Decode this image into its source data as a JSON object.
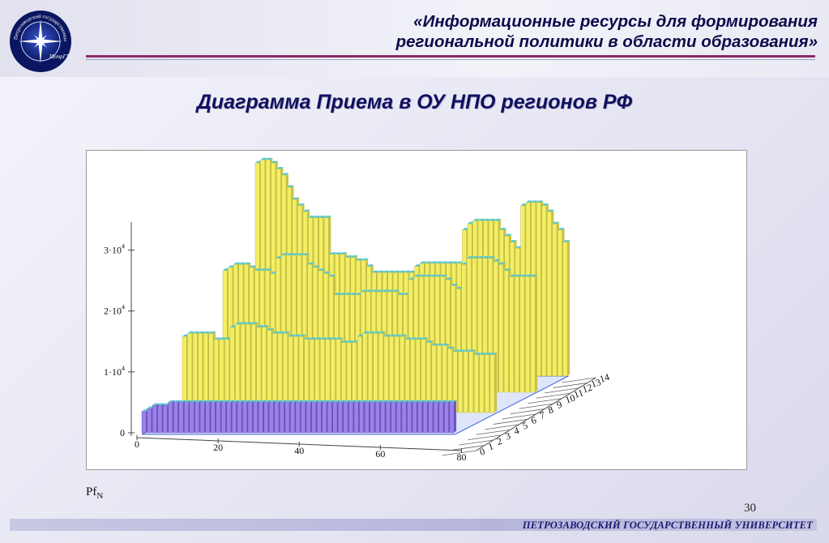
{
  "header": {
    "title_line1": "«Информационные ресурсы для формирования",
    "title_line2": "региональной политики в области образования»",
    "logo_icon": "university-star-logo-icon",
    "logo_text_arc": "Петрозаводский государственный университет",
    "logo_text_center": "ПетрГУ"
  },
  "slide": {
    "title": "Диаграмма Приема в ОУ НПО регионов РФ",
    "page_number": "30"
  },
  "footer": {
    "university_name": "ПЕТРОЗАВОДСКИЙ ГОСУДАРСТВЕННЫЙ УНИВЕРСИТЕТ"
  },
  "colors": {
    "accent_rule": "#8a2a6b",
    "title_text": "#101060",
    "bar_yellow": "#f3ee63",
    "bar_violet": "#9b82e8",
    "floor_blue": "#3f63d6"
  },
  "chart_data": {
    "type": "bar",
    "subtype": "3d-bar",
    "caption_main": "Pf",
    "caption_sub": "N",
    "z_axis": {
      "ticks": [
        "0",
        "1·10",
        "2·10",
        "3·10"
      ],
      "tick_exponent": "4",
      "values": [
        0,
        10000,
        20000,
        30000
      ]
    },
    "x_axis": {
      "ticks": [
        "0",
        "20",
        "40",
        "60",
        "80"
      ],
      "values": [
        0,
        20,
        40,
        60,
        80
      ]
    },
    "y_axis": {
      "ticks": [
        "0",
        "1",
        "2",
        "3",
        "4",
        "5",
        "6",
        "7",
        "8",
        "9",
        "10",
        "11",
        "12",
        "13",
        "14"
      ],
      "values": [
        0,
        1,
        2,
        3,
        4,
        5,
        6,
        7,
        8,
        9,
        10,
        11,
        12,
        13,
        14
      ]
    },
    "series": [
      {
        "row": 14,
        "values": [
          35000,
          35500,
          35500,
          35000,
          34000,
          33000,
          31000,
          29000,
          28000,
          27000,
          26000,
          26000,
          26000,
          26000,
          20000,
          20000,
          20000,
          19500,
          19500,
          19000,
          19000,
          18000,
          17000,
          17000,
          17000,
          17000,
          17000,
          17000,
          17000,
          17000,
          18000,
          18500,
          18500,
          18500,
          18500,
          18500,
          18500,
          18500,
          18500,
          24000,
          25000,
          25500,
          25500,
          25500,
          25500,
          25500,
          24000,
          23000,
          22000,
          21000,
          28000,
          28500,
          28500,
          28500,
          28000,
          27000,
          25000,
          24000,
          22000
        ]
      },
      {
        "row": 10,
        "values": [
          20000,
          20500,
          21000,
          21000,
          21000,
          20500,
          20000,
          20000,
          20000,
          19500,
          22000,
          22500,
          22500,
          22500,
          22500,
          22500,
          21000,
          20500,
          20000,
          19500,
          19000,
          16000,
          16000,
          16000,
          16000,
          16000,
          16500,
          16500,
          16500,
          16500,
          16500,
          16500,
          16500,
          16000,
          16000,
          18500,
          19000,
          19000,
          19000,
          19000,
          19000,
          19000,
          18500,
          17500,
          17000,
          21000,
          22000,
          22000,
          22000,
          22000,
          22000,
          21500,
          21000,
          20000,
          19000,
          19000,
          19000,
          19000,
          19000
        ]
      },
      {
        "row": 5,
        "values": [
          12500,
          13000,
          13000,
          13000,
          13000,
          13000,
          12000,
          12000,
          12000,
          14000,
          14500,
          14500,
          14500,
          14500,
          14000,
          14000,
          13500,
          13000,
          13000,
          13000,
          12500,
          12500,
          12500,
          12000,
          12000,
          12000,
          12000,
          12000,
          12000,
          12000,
          11500,
          11500,
          11500,
          12500,
          13000,
          13000,
          13000,
          13000,
          12500,
          12500,
          12500,
          12500,
          12000,
          12000,
          12000,
          12000,
          11500,
          11000,
          11000,
          11000,
          10500,
          10000,
          10000,
          10000,
          10000,
          9500,
          9500,
          9500,
          9500
        ]
      },
      {
        "row": 0,
        "values": [
          3500,
          4000,
          4500,
          4500,
          4500,
          5000,
          5000,
          5000,
          5000,
          5000,
          5000,
          5000,
          5000,
          5000,
          5000,
          5000,
          5000,
          5000,
          5000,
          5000,
          5000,
          5000,
          5000,
          5000,
          5000,
          5000,
          5000,
          5000,
          5000,
          5000,
          5000,
          5000,
          5000,
          5000,
          5000,
          5000,
          5000,
          5000,
          5000,
          5000,
          5000,
          5000,
          5000,
          5000,
          5000,
          5000,
          5000,
          5000,
          5000,
          5000,
          5000,
          5000,
          5000,
          5000,
          5000,
          5000,
          5000,
          5000,
          5000
        ]
      }
    ]
  }
}
